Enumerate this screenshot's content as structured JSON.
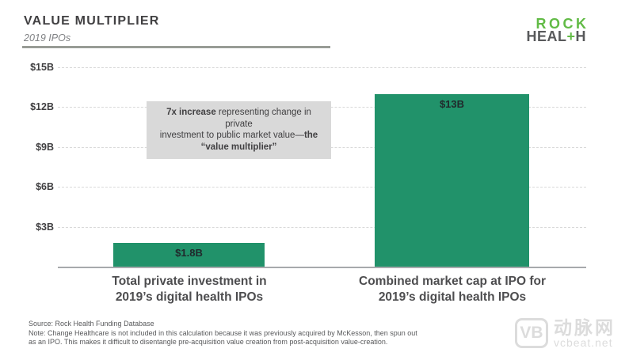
{
  "header": {
    "title": "VALUE MULTIPLIER",
    "subtitle": "2019 IPOs"
  },
  "logo": {
    "rock": "ROCK",
    "heal": "HEAL",
    "plus": "+",
    "h": "H"
  },
  "annotation": {
    "lines": [
      {
        "segments": [
          {
            "t": "7x increase",
            "b": true
          },
          {
            "t": " representing change in private",
            "b": false
          }
        ]
      },
      {
        "segments": [
          {
            "t": "investment to public market value—",
            "b": false
          },
          {
            "t": "the",
            "b": true
          }
        ]
      },
      {
        "segments": [
          {
            "t": "“value multiplier”",
            "b": true
          }
        ]
      }
    ]
  },
  "chart_data": {
    "type": "bar",
    "title": "VALUE MULTIPLIER",
    "subtitle": "2019 IPOs",
    "categories": [
      "Total private investment in 2019’s digital health IPOs",
      "Combined market cap at IPO for 2019’s digital health IPOs"
    ],
    "category_lines": [
      [
        "Total private investment in",
        "2019’s digital health IPOs"
      ],
      [
        "Combined market cap at IPO for",
        "2019’s digital health IPOs"
      ]
    ],
    "values": [
      1.8,
      13
    ],
    "value_labels": [
      "$1.8B",
      "$13B"
    ],
    "ytick_values": [
      3,
      6,
      9,
      12,
      15
    ],
    "ytick_labels": [
      "$3B",
      "$6B",
      "$9B",
      "$12B",
      "$15B"
    ],
    "ylim": [
      0,
      15
    ],
    "bar_color": "#21926a",
    "grid": "dashed horizontal",
    "legend": "none"
  },
  "footer": {
    "source": "Source: Rock Health Funding Database",
    "note1": "Note: Change Healthcare is not included in this calculation because it was previously acquired by McKesson, then spun out",
    "note2": "as an IPO. This makes it difficult to disentangle pre-acquisition value creation from post-acquisition value-creation."
  },
  "watermark": {
    "vb": "VB",
    "cn": "动脉网",
    "site": "vcbeat.net"
  },
  "colors": {
    "bar_green": "#21926a",
    "logo_green": "#62bb46",
    "logo_gray": "#58595b",
    "title_gray": "#414042",
    "annotation_bg": "#d9d9d9"
  }
}
